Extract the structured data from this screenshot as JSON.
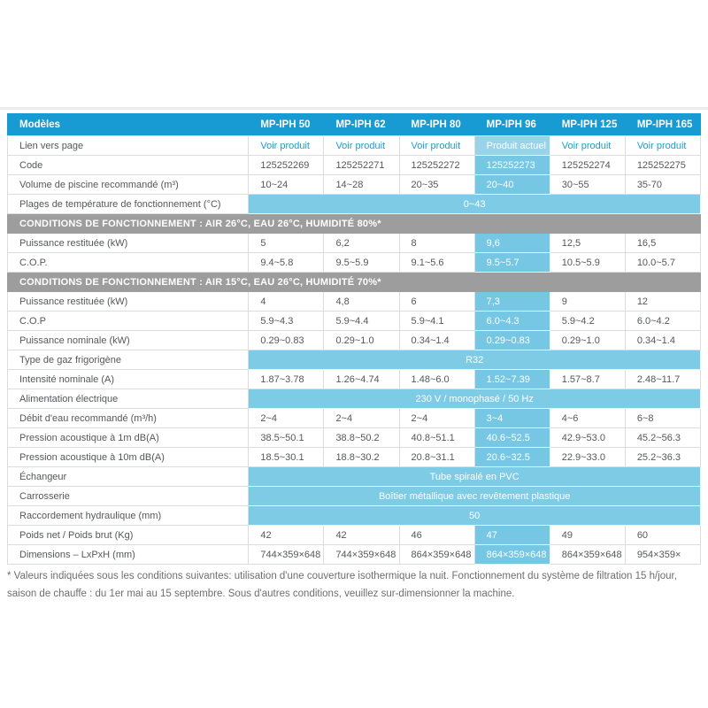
{
  "colors": {
    "header_blue": "#189bd3",
    "highlight_blue": "#76c7e3",
    "current_cell_blue": "#98d3ea",
    "span_blue": "#7ecbe6",
    "section_gray": "#9d9d9d",
    "link_blue": "#1b9cd2"
  },
  "table": {
    "header": {
      "label": "Modèles",
      "models": [
        "MP-IPH 50",
        "MP-IPH 62",
        "MP-IPH 80",
        "MP-IPH 96",
        "MP-IPH 125",
        "MP-IPH 165"
      ]
    },
    "highlight_column_index": 3,
    "rows": [
      {
        "type": "links",
        "label": "Lien vers page",
        "values": [
          "Voir produit",
          "Voir produit",
          "Voir produit",
          "Produit actuel",
          "Voir produit",
          "Voir produit"
        ]
      },
      {
        "type": "data",
        "label": "Code",
        "values": [
          "125252269",
          "125252271",
          "125252272",
          "125252273",
          "125252274",
          "125252275"
        ]
      },
      {
        "type": "data",
        "label": "Volume de piscine recommandé (m³)",
        "values": [
          "10~24",
          "14~28",
          "20~35",
          "20~40",
          "30~55",
          "35-70"
        ]
      },
      {
        "type": "span",
        "label": "Plages de température de fonctionnement (°C)",
        "value": "0~43"
      },
      {
        "type": "section",
        "label": "CONDITIONS DE FONCTIONNEMENT : AIR 26°C, EAU 26°C, HUMIDITÉ 80%*"
      },
      {
        "type": "data",
        "label": "Puissance restituée (kW)",
        "values": [
          "5",
          "6,2",
          "8",
          "9,6",
          "12,5",
          "16,5"
        ]
      },
      {
        "type": "data",
        "label": "C.O.P.",
        "values": [
          "9.4~5.8",
          "9.5~5.9",
          "9.1~5.6",
          "9.5~5.7",
          "10.5~5.9",
          "10.0~5.7"
        ]
      },
      {
        "type": "section",
        "label": "CONDITIONS DE FONCTIONNEMENT : AIR 15°C, EAU 26°C, HUMIDITÉ 70%*"
      },
      {
        "type": "data",
        "label": "Puissance restituée (kW)",
        "values": [
          "4",
          "4,8",
          "6",
          "7,3",
          "9",
          "12"
        ]
      },
      {
        "type": "data",
        "label": "C.O.P",
        "values": [
          "5.9~4.3",
          "5.9~4.4",
          "5.9~4.1",
          "6.0~4.3",
          "5.9~4.2",
          "6.0~4.2"
        ]
      },
      {
        "type": "data",
        "label": "Puissance nominale (kW)",
        "values": [
          "0.29~0.83",
          "0.29~1.0",
          "0.34~1.4",
          "0.29~0.83",
          "0.29~1.0",
          "0.34~1.4"
        ]
      },
      {
        "type": "span",
        "label": "Type de gaz frigorigène",
        "value": "R32"
      },
      {
        "type": "data",
        "label": "Intensité nominale (A)",
        "values": [
          "1.87~3.78",
          "1.26~4.74",
          "1.48~6.0",
          "1.52~7.39",
          "1.57~8.7",
          "2.48~11.7"
        ]
      },
      {
        "type": "span",
        "label": "Alimentation électrique",
        "value": "230 V / monophasé / 50 Hz"
      },
      {
        "type": "data",
        "label": "Débit d'eau recommandé (m³/h)",
        "values": [
          "2~4",
          "2~4",
          "2~4",
          "3~4",
          "4~6",
          "6~8"
        ]
      },
      {
        "type": "data",
        "label": "Pression acoustique à 1m dB(A)",
        "values": [
          "38.5~50.1",
          "38.8~50.2",
          "40.8~51.1",
          "40.6~52.5",
          "42.9~53.0",
          "45.2~56.3"
        ]
      },
      {
        "type": "data",
        "label": "Pression acoustique à 10m dB(A)",
        "values": [
          "18.5~30.1",
          "18.8~30.2",
          "20.8~31.1",
          "20.6~32.5",
          "22.9~33.0",
          "25.2~36.3"
        ]
      },
      {
        "type": "span",
        "label": "Échangeur",
        "value": "Tube spiralé en PVC"
      },
      {
        "type": "span",
        "label": "Carrosserie",
        "value": "Boîtier métallique avec revêtement plastique"
      },
      {
        "type": "span",
        "label": "Raccordement hydraulique (mm)",
        "value": "50"
      },
      {
        "type": "data",
        "label": "Poids net / Poids brut (Kg)",
        "values": [
          "42",
          "42",
          "46",
          "47",
          "49",
          "60"
        ]
      },
      {
        "type": "data",
        "label": "Dimensions – LxPxH (mm)",
        "values": [
          "744×359×648",
          "744×359×648",
          "864×359×648",
          "864×359×648",
          "864×359×648",
          "954×359×"
        ]
      }
    ]
  },
  "footnote": "* Valeurs indiquées sous les conditions suivantes: utilisation d'une couverture isothermique la nuit. Fonctionnement du système de filtration 15 h/jour, saison de chauffe : du 1er mai au 15 septembre. Sous d'autres conditions, veuillez sur-dimensionner la machine."
}
